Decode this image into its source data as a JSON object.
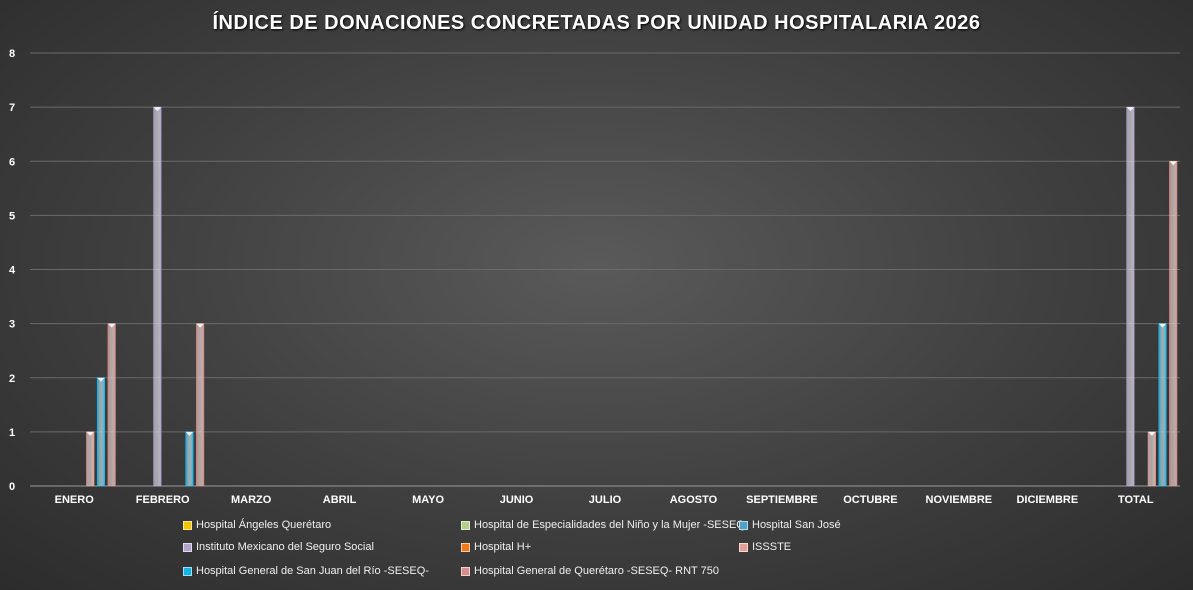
{
  "chart_data": {
    "type": "bar",
    "title": "ÍNDICE DE DONACIONES CONCRETADAS POR UNIDAD HOSPITALARIA 2026",
    "xlabel": "",
    "ylabel": "",
    "ylim": [
      0,
      8
    ],
    "yticks": [
      0,
      1,
      2,
      3,
      4,
      5,
      6,
      7,
      8
    ],
    "grid": true,
    "legend_position": "bottom",
    "categories": [
      "ENERO",
      "FEBRERO",
      "MARZO",
      "ABRIL",
      "MAYO",
      "JUNIO",
      "JULIO",
      "AGOSTO",
      "SEPTIEMBRE",
      "OCTUBRE",
      "NOVIEMBRE",
      "DICIEMBRE",
      "TOTAL"
    ],
    "series": [
      {
        "name": "Hospital Ángeles Querétaro",
        "color": "#f5c400",
        "values": [
          0,
          0,
          0,
          0,
          0,
          0,
          0,
          0,
          0,
          0,
          0,
          0,
          0
        ]
      },
      {
        "name": "Hospital de Especialidades del Niño y la Mujer -SESEQ-",
        "color": "#b5cf8a",
        "values": [
          0,
          0,
          0,
          0,
          0,
          0,
          0,
          0,
          0,
          0,
          0,
          0,
          0
        ]
      },
      {
        "name": "Hospital San José",
        "color": "#4fa3c7",
        "values": [
          0,
          0,
          0,
          0,
          0,
          0,
          0,
          0,
          0,
          0,
          0,
          0,
          0
        ]
      },
      {
        "name": "Instituto Mexicano del Seguro Social",
        "color": "#b3a2cc",
        "values": [
          0,
          7,
          0,
          0,
          0,
          0,
          0,
          0,
          0,
          0,
          0,
          0,
          7
        ]
      },
      {
        "name": "Hospital H+",
        "color": "#f07a1a",
        "values": [
          0,
          0,
          0,
          0,
          0,
          0,
          0,
          0,
          0,
          0,
          0,
          0,
          0
        ]
      },
      {
        "name": "ISSSTE",
        "color": "#e5a09a",
        "values": [
          1,
          0,
          0,
          0,
          0,
          0,
          0,
          0,
          0,
          0,
          0,
          0,
          1
        ]
      },
      {
        "name": "Hospital General de San Juan del Río -SESEQ-",
        "color": "#13b4e8",
        "values": [
          2,
          1,
          0,
          0,
          0,
          0,
          0,
          0,
          0,
          0,
          0,
          0,
          3
        ]
      },
      {
        "name": "Hospital General de Querétaro -SESEQ- RNT 750",
        "color": "#d88e86",
        "values": [
          3,
          3,
          0,
          0,
          0,
          0,
          0,
          0,
          0,
          0,
          0,
          0,
          6
        ]
      }
    ]
  }
}
